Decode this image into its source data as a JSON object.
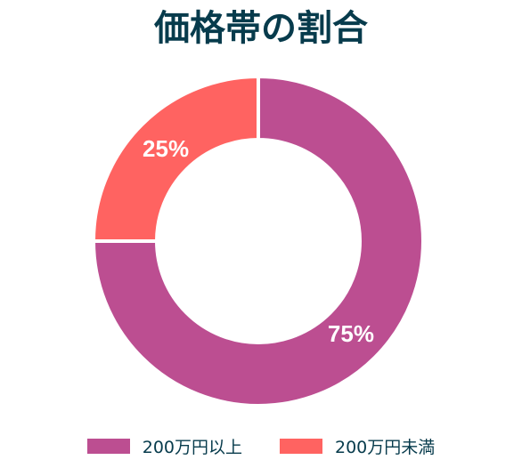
{
  "chart_data": {
    "type": "pie",
    "title": "価格帯の割合",
    "categories": [
      "200万円以上",
      "200万円未満"
    ],
    "values": [
      75,
      25
    ],
    "data_labels": [
      "75%",
      "25%"
    ],
    "colors": [
      "#bc4e91",
      "#ff6361"
    ],
    "legend": "bottom",
    "donut": true
  },
  "colors": {
    "title": "#073b4c",
    "legend_text": "#073b4c",
    "label_text": "#ffffff",
    "separator": "#ffffff"
  }
}
